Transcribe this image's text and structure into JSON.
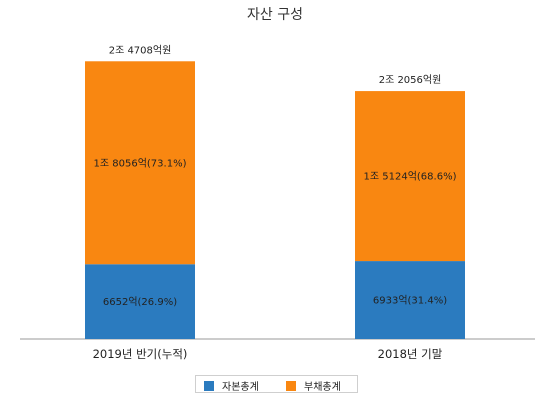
{
  "chart_data": {
    "type": "bar",
    "stacked": true,
    "title": "자산 구성",
    "categories": [
      "2019년 반기(누적)",
      "2018년 기말"
    ],
    "totals_label": [
      "2조 4708억원",
      "2조 2056억원"
    ],
    "totals": [
      24708,
      22056
    ],
    "series": [
      {
        "name": "자본총계",
        "values": [
          6652,
          6933
        ],
        "labels": [
          "6652억(26.9%)",
          "6933억(31.4%)"
        ],
        "color": "#2b7bbf"
      },
      {
        "name": "부채총계",
        "values": [
          18056,
          15124
        ],
        "labels": [
          "1조 8056억(73.1%)",
          "1조 5124억(68.6%)"
        ],
        "color": "#f98711"
      }
    ],
    "unit": "억원",
    "ylim": [
      0,
      25000
    ],
    "grid": false,
    "legend": "bottom"
  }
}
